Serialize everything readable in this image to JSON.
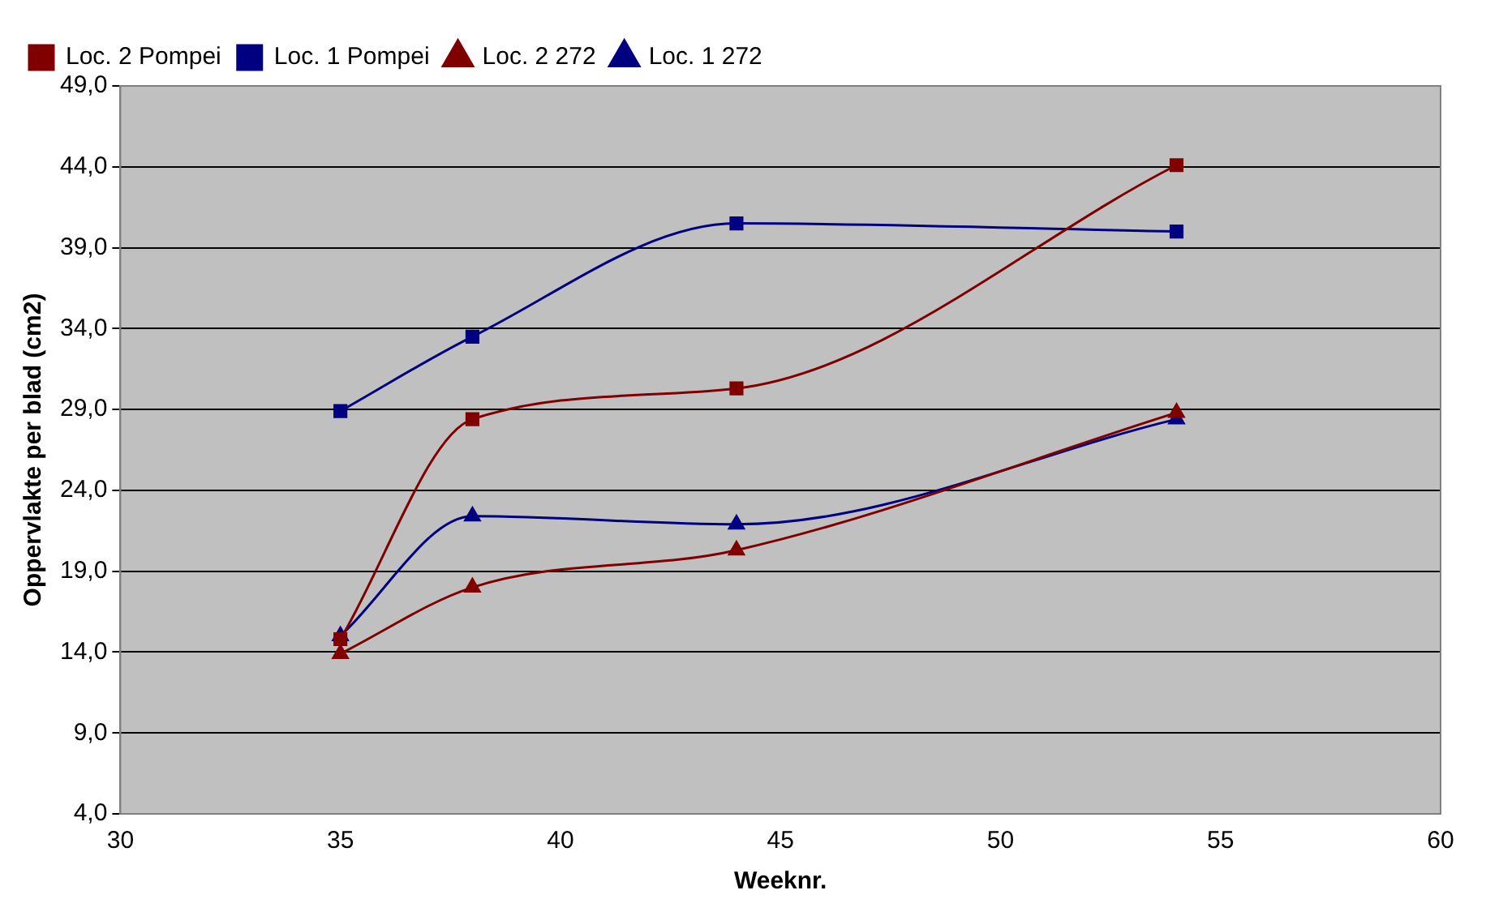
{
  "chart_data": {
    "type": "line",
    "xlabel": "Weeknr.",
    "ylabel": "Oppervlakte per blad (cm2)",
    "xlim": [
      30,
      60
    ],
    "xticks": [
      30,
      35,
      40,
      45,
      50,
      55,
      60
    ],
    "ylim": [
      4,
      49
    ],
    "yticks": [
      {
        "value": 4,
        "label": "4,0"
      },
      {
        "value": 9,
        "label": "9,0"
      },
      {
        "value": 14,
        "label": "14,0"
      },
      {
        "value": 19,
        "label": "19,0"
      },
      {
        "value": 24,
        "label": "24,0"
      },
      {
        "value": 29,
        "label": "29,0"
      },
      {
        "value": 34,
        "label": "34,0"
      },
      {
        "value": 39,
        "label": "39,0"
      },
      {
        "value": 44,
        "label": "44,0"
      },
      {
        "value": 49,
        "label": "49,0"
      }
    ],
    "grid": "y",
    "legend": "top left",
    "series": [
      {
        "name": "Loc. 1 272",
        "color": "#000080",
        "marker": "triangle",
        "x": [
          35,
          38,
          44,
          54
        ],
        "values": [
          15.0,
          22.4,
          21.9,
          28.4
        ]
      },
      {
        "name": "Loc. 2 272",
        "color": "#800000",
        "marker": "triangle",
        "x": [
          35,
          38,
          44,
          54
        ],
        "values": [
          13.9,
          18.0,
          20.3,
          28.8
        ]
      },
      {
        "name": "Loc. 1 Pompei",
        "color": "#000080",
        "marker": "square",
        "x": [
          35,
          38,
          44,
          54
        ],
        "values": [
          28.9,
          33.5,
          40.5,
          40.0
        ]
      },
      {
        "name": "Loc. 2 Pompei",
        "color": "#800000",
        "marker": "square",
        "x": [
          35,
          38,
          44,
          54
        ],
        "values": [
          14.8,
          28.4,
          30.3,
          44.1
        ]
      }
    ]
  }
}
